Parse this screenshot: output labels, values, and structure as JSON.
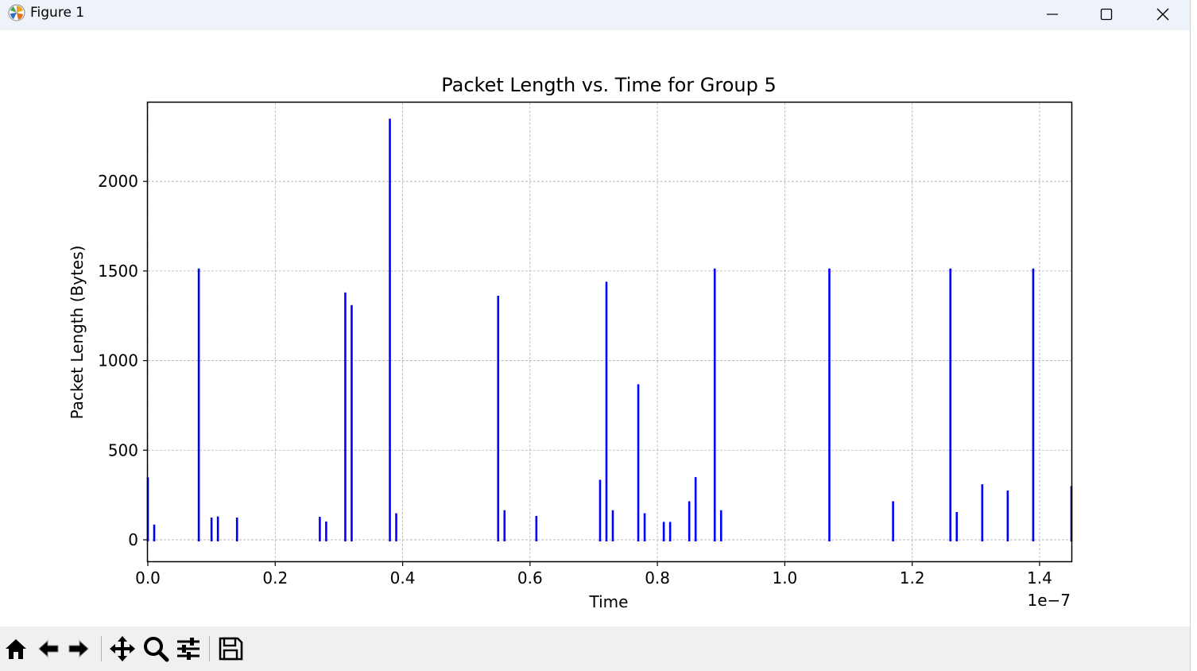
{
  "window": {
    "title": "Figure 1"
  },
  "chart_data": {
    "type": "bar",
    "title": "Packet Length vs. Time for Group 5",
    "xlabel": "Time",
    "ylabel": "Packet Length (Bytes)",
    "x_offset_label": "1e−7",
    "x_tick_labels": [
      "0.0",
      "0.2",
      "0.4",
      "0.6",
      "0.8",
      "1.0",
      "1.2",
      "1.4"
    ],
    "x_ticks": [
      0.0,
      0.2,
      0.4,
      0.6,
      0.8,
      1.0,
      1.2,
      1.4
    ],
    "y_tick_labels": [
      "0",
      "500",
      "1000",
      "1500",
      "2000"
    ],
    "y_ticks": [
      0,
      500,
      1000,
      1500,
      2000
    ],
    "xlim": [
      0.0,
      1.45
    ],
    "ylim": [
      -120,
      2440
    ],
    "grid": true,
    "bar_color": "#0000ff",
    "x": [
      0.0,
      0.01,
      0.08,
      0.1,
      0.11,
      0.14,
      0.27,
      0.28,
      0.31,
      0.32,
      0.38,
      0.39,
      0.55,
      0.56,
      0.61,
      0.71,
      0.72,
      0.73,
      0.77,
      0.78,
      0.81,
      0.82,
      0.85,
      0.86,
      0.89,
      0.9,
      1.07,
      1.17,
      1.26,
      1.27,
      1.31,
      1.35,
      1.39,
      1.45
    ],
    "values": [
      348,
      85,
      1514,
      124,
      130,
      124,
      128,
      102,
      1380,
      1310,
      2350,
      148,
      1362,
      165,
      133,
      335,
      1440,
      165,
      868,
      148,
      100,
      100,
      215,
      350,
      1514,
      165,
      1514,
      215,
      1514,
      155,
      310,
      275,
      1514,
      300
    ]
  },
  "toolbar": {
    "buttons": [
      {
        "name": "home-button",
        "icon": "home-icon"
      },
      {
        "name": "back-button",
        "icon": "back-arrow-icon"
      },
      {
        "name": "forward-button",
        "icon": "forward-arrow-icon"
      },
      {
        "name": "pan-button",
        "icon": "pan-icon"
      },
      {
        "name": "zoom-button",
        "icon": "zoom-icon"
      },
      {
        "name": "configure-subplots-button",
        "icon": "sliders-icon"
      },
      {
        "name": "save-button",
        "icon": "save-icon"
      }
    ]
  }
}
